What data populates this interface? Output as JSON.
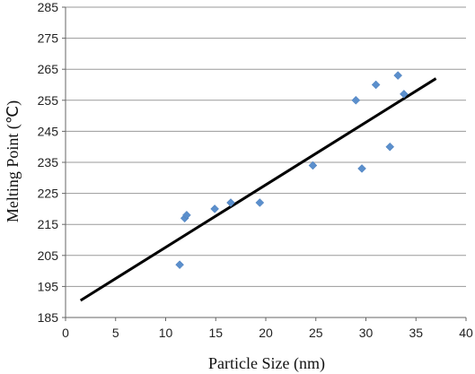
{
  "chart_data": {
    "type": "scatter",
    "xlabel": "Particle Size (nm)",
    "ylabel": "Melting Point (℃)",
    "xlim": [
      0,
      40
    ],
    "ylim": [
      185,
      285
    ],
    "xticks": [
      0,
      5,
      10,
      15,
      20,
      25,
      30,
      35,
      40
    ],
    "yticks": [
      185,
      195,
      205,
      215,
      225,
      235,
      245,
      255,
      265,
      275,
      285
    ],
    "grid": "horizontal",
    "marker_color": "#5b8fcc",
    "line_color": "#000000",
    "series": [
      {
        "points": [
          [
            11.4,
            202
          ],
          [
            11.9,
            217
          ],
          [
            12.1,
            218
          ],
          [
            14.9,
            220
          ],
          [
            16.5,
            222
          ],
          [
            19.4,
            222
          ],
          [
            24.7,
            234
          ],
          [
            29.0,
            255
          ],
          [
            29.6,
            233
          ],
          [
            31.0,
            260
          ],
          [
            32.4,
            240
          ],
          [
            33.2,
            263
          ],
          [
            33.8,
            257
          ]
        ]
      }
    ],
    "trendline": {
      "x": [
        1.5,
        37
      ],
      "y": [
        190.5,
        262
      ]
    }
  }
}
